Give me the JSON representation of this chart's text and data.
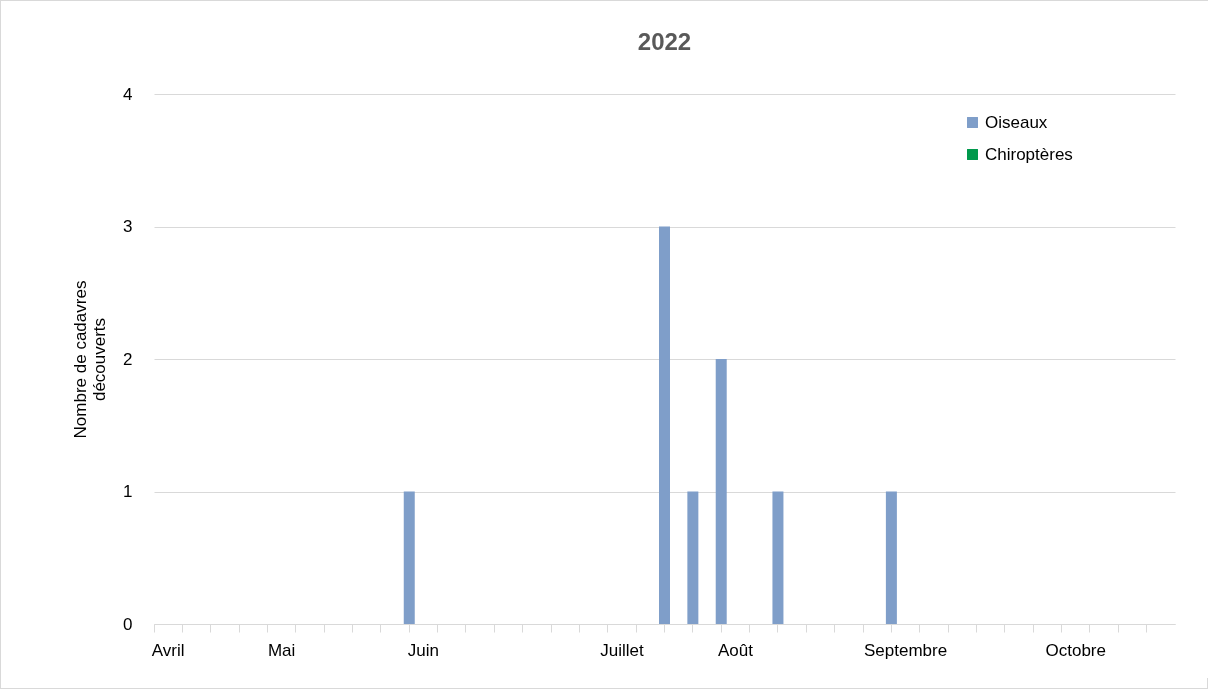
{
  "chart_data": {
    "type": "bar",
    "title": "2022",
    "ylabel": "Nombre de cadavres découverts",
    "categories": [
      "Avril",
      null,
      null,
      null,
      "Mai",
      null,
      null,
      null,
      null,
      "Juin",
      null,
      null,
      null,
      null,
      null,
      null,
      "Juillet",
      null,
      null,
      null,
      "Août",
      null,
      null,
      null,
      null,
      null,
      "Septembre",
      null,
      null,
      null,
      null,
      null,
      "Octobre",
      null,
      null,
      null
    ],
    "series": [
      {
        "name": "Oiseaux",
        "color": "#7f9ec9",
        "values": [
          0,
          0,
          0,
          0,
          0,
          0,
          0,
          0,
          0,
          1,
          0,
          0,
          0,
          0,
          0,
          0,
          0,
          0,
          3,
          1,
          2,
          0,
          1,
          0,
          0,
          0,
          1,
          0,
          0,
          0,
          0,
          0,
          0,
          0,
          0,
          0
        ]
      },
      {
        "name": "Chiroptères",
        "color": "#00994c",
        "values": [
          0,
          0,
          0,
          0,
          0,
          0,
          0,
          0,
          0,
          0,
          0,
          0,
          0,
          0,
          0,
          0,
          0,
          0,
          0,
          0,
          0,
          0,
          0,
          0,
          0,
          0,
          0,
          0,
          0,
          0,
          0,
          0,
          0,
          0,
          0,
          0
        ]
      }
    ],
    "ylim": [
      0,
      4
    ],
    "yticks": [
      0,
      1,
      2,
      3,
      4
    ],
    "grid": "y",
    "legend": "top right"
  }
}
